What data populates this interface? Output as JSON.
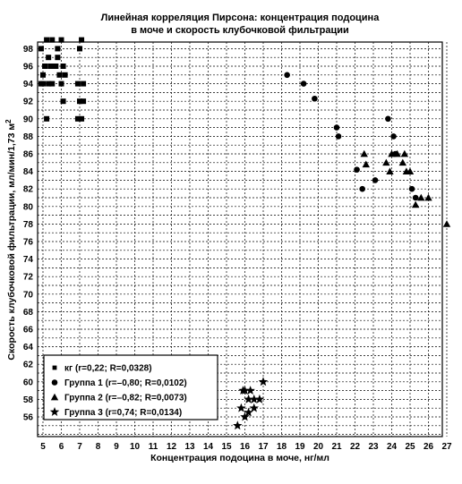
{
  "chart_data": {
    "type": "scatter",
    "title_line1": "Линейная корреляция Пирсона: концентрация подоцина",
    "title_line2": "в моче и скорость клубочковой фильтрации",
    "xlabel": "Концентрация подоцина в моче, нг/мл",
    "ylabel": "Скорость клубочковой фильтрации, мл/мин/1,73 м",
    "ylabel_sup": "2",
    "xlim": [
      5,
      27
    ],
    "ylim": [
      54,
      99
    ],
    "x_ticks": [
      5,
      6,
      7,
      8,
      9,
      10,
      11,
      12,
      13,
      14,
      15,
      16,
      17,
      18,
      19,
      20,
      21,
      22,
      23,
      24,
      25,
      26,
      27
    ],
    "x_tick_labels": [
      "5",
      "6",
      "7",
      "8",
      "9",
      "10",
      "11",
      "12",
      "13",
      "14",
      "15",
      "16",
      "17",
      "18",
      "19",
      "20",
      "21",
      "22",
      "23",
      "24",
      "25",
      "26",
      "27"
    ],
    "y_ticks": [
      56,
      58,
      60,
      62,
      64,
      66,
      68,
      70,
      72,
      74,
      76,
      78,
      80,
      82,
      84,
      86,
      88,
      90,
      92,
      94,
      96,
      98
    ],
    "y_tick_labels": [
      "56",
      "58",
      "60",
      "62",
      "64",
      "66",
      "68",
      "70",
      "72",
      "74",
      "76",
      "78",
      "80",
      "82",
      "84",
      "86",
      "88",
      "90",
      "92",
      "94",
      "96",
      "98"
    ],
    "grid": true,
    "legend_position": "bottom-left",
    "series": [
      {
        "name": "кг (r=0,22; R=0,0328)",
        "marker": "square",
        "x": [
          4.9,
          5.2,
          5.5,
          5.3,
          5.6,
          5.8,
          6.0,
          5.1,
          5.4,
          4.9,
          5.7,
          5.9,
          6.2,
          5.3,
          5.0,
          6.1,
          5.5,
          5.8,
          7.0,
          7.1,
          5.2,
          6.0,
          7.0,
          7.2,
          6.9,
          7.1,
          5.0,
          7.2,
          6.9,
          6.1
        ],
        "y": [
          98,
          99,
          99,
          97,
          96,
          97,
          99,
          96,
          96,
          94,
          96,
          95,
          95,
          94,
          95,
          92,
          94,
          98,
          98,
          99,
          90,
          94,
          92,
          92,
          90,
          90,
          94,
          94,
          94,
          96
        ]
      },
      {
        "name": "Группа 1 (r=–0,80; R=0,0102)",
        "marker": "circle",
        "x": [
          18.3,
          19.2,
          19.8,
          21.0,
          21.1,
          22.1,
          22.4,
          23.1,
          23.8,
          24.1,
          24.2,
          25.1,
          25.3
        ],
        "y": [
          95,
          94,
          92.3,
          89,
          88,
          84.2,
          82,
          83,
          90,
          88,
          86,
          82,
          81
        ],
        "_note_": "values read from gridlines"
      },
      {
        "name": "Группа 2 (r=–0,82; R=0,0073)",
        "marker": "triangle",
        "x": [
          22.5,
          22.6,
          23.7,
          23.9,
          24.0,
          24.3,
          24.6,
          24.7,
          24.8,
          25.0,
          25.3,
          25.6,
          26.0,
          27.0
        ],
        "y": [
          86,
          84.8,
          85,
          84,
          86,
          86,
          85,
          86,
          84,
          84,
          80.2,
          81,
          81,
          78
        ]
      },
      {
        "name": "Группа 3 (r=0,74; R=0,0134)",
        "marker": "star",
        "x": [
          15.6,
          15.8,
          15.9,
          16.0,
          16.0,
          16.2,
          16.2,
          16.3,
          16.5,
          16.5,
          16.8,
          17.0
        ],
        "y": [
          55,
          57,
          59,
          56,
          59,
          56.5,
          58,
          59,
          58,
          57,
          58,
          60
        ]
      }
    ]
  }
}
